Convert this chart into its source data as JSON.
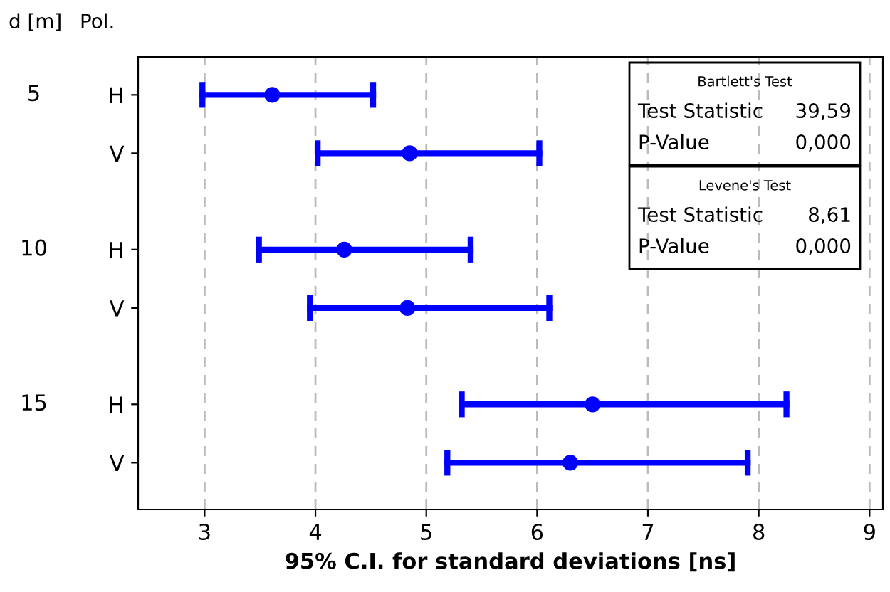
{
  "chart_data": {
    "type": "scatter",
    "orientation": "horizontal",
    "xlabel": "95% C.I. for standard deviations [ns]",
    "categories": [
      "H",
      "V",
      "H",
      "V",
      "H",
      "V"
    ],
    "values": [
      3.61,
      4.85,
      4.26,
      4.83,
      6.5,
      6.3
    ],
    "errors": [
      [
        2.98,
        4.52
      ],
      [
        4.02,
        6.02
      ],
      [
        3.49,
        5.4
      ],
      [
        3.95,
        6.11
      ],
      [
        5.32,
        8.25
      ],
      [
        5.19,
        7.9
      ]
    ],
    "color": "#0000ff",
    "marker": "circle",
    "line_style": "solid",
    "xlim": [
      2.4,
      9.12
    ],
    "xticks": [
      3,
      4,
      5,
      6,
      7,
      8,
      9
    ],
    "grid": "x",
    "annotations": [
      "d [m]",
      "Pol.",
      "5",
      "10",
      "15",
      "Bartlett's Test",
      "Test Statistic",
      "39,59",
      "P-Value",
      "0,000",
      "Levene's Test",
      "Test Statistic",
      "8,61",
      "P-Value",
      "0,000"
    ]
  }
}
